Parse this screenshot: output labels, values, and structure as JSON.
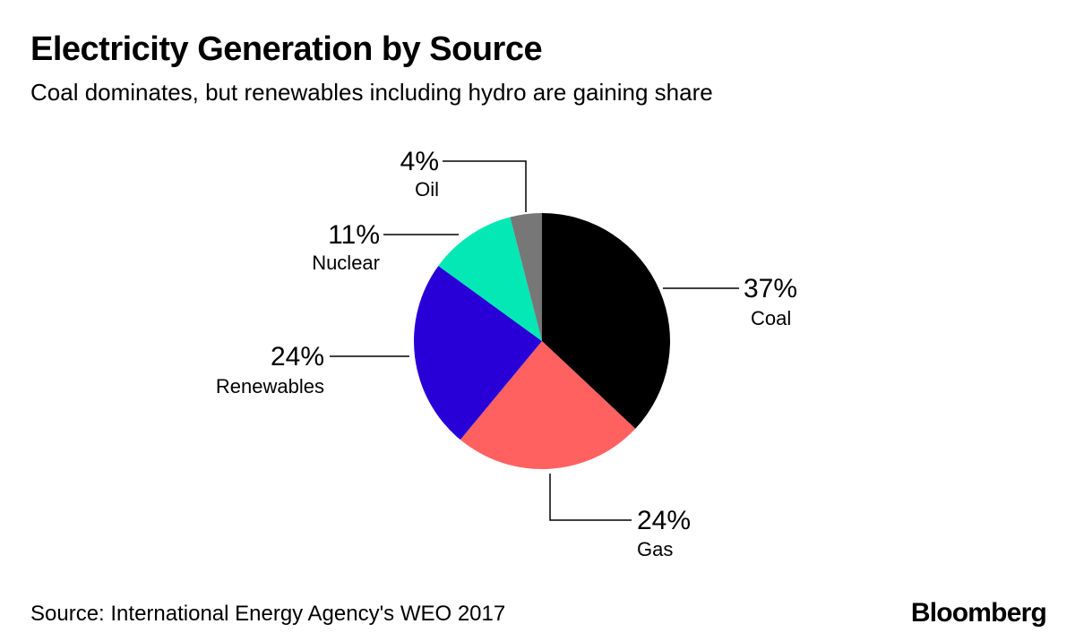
{
  "header": {
    "title": "Electricity Generation by Source",
    "subtitle": "Coal dominates, but renewables including hydro are gaining share"
  },
  "footer": {
    "source": "Source: International Energy Agency's WEO 2017",
    "brand": "Bloomberg"
  },
  "chart_data": {
    "type": "pie",
    "start_angle": "12 o'clock",
    "direction": "clockwise",
    "slices": [
      {
        "label": "Coal",
        "value": 37,
        "value_label": "37%",
        "color": "#000000"
      },
      {
        "label": "Gas",
        "value": 24,
        "value_label": "24%",
        "color": "#ff6161"
      },
      {
        "label": "Renewables",
        "value": 24,
        "value_label": "24%",
        "color": "#2800d7"
      },
      {
        "label": "Nuclear",
        "value": 11,
        "value_label": "11%",
        "color": "#03e8b5"
      },
      {
        "label": "Oil",
        "value": 4,
        "value_label": "4%",
        "color": "#777777"
      }
    ]
  }
}
